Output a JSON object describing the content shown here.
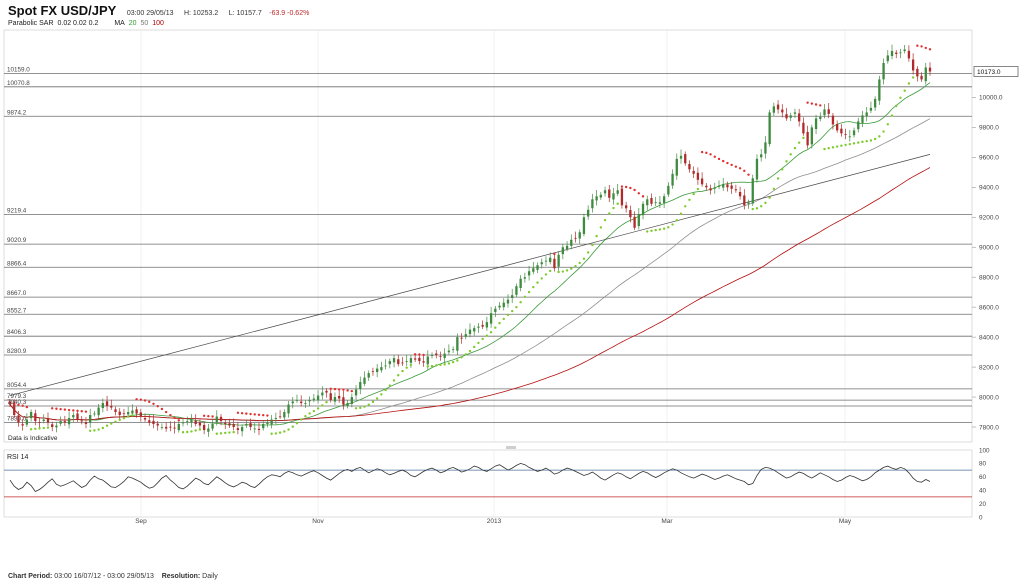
{
  "header": {
    "title": "Spot FX USD/JPY",
    "datetime": "03:00 29/05/13",
    "high": "H: 10253.2",
    "low": "L: 10157.7",
    "change": "-63.9 -0.62%"
  },
  "indicators": {
    "sar_label": "Parabolic SAR",
    "sar_params": "0.02 0.02 0.2",
    "ma_label": "MA",
    "ma20": "20",
    "ma50": "50",
    "ma100": "100"
  },
  "footer": {
    "period_label": "Chart Period:",
    "period_value": "03:00 16/07/12 - 03:00 29/05/13",
    "resolution_label": "Resolution:",
    "resolution_value": "Daily"
  },
  "chart_data": [
    {
      "type": "candlestick",
      "title": "Spot FX USD/JPY",
      "ylim": [
        7700,
        10450
      ],
      "y_ticks": [
        7800,
        8000,
        8200,
        8400,
        8600,
        8800,
        9000,
        9200,
        9400,
        9600,
        9800,
        10000
      ],
      "y_tick_labels": [
        "7800.0",
        "8000.0",
        "8200.0",
        "8400.0",
        "8600.0",
        "8800.0",
        "9000.0",
        "9200.0",
        "9400.0",
        "9600.0",
        "9800.0",
        "10000.0"
      ],
      "x_tick_labels": [
        "Sep",
        "Nov",
        "2013",
        "Mar",
        "May"
      ],
      "last_price": "10173.0",
      "horizontal_levels": [
        {
          "label": "10159.0",
          "value": 10159.0
        },
        {
          "label": "10070.8",
          "value": 10070.8
        },
        {
          "label": "9874.2",
          "value": 9874.2
        },
        {
          "label": "9219.4",
          "value": 9219.4
        },
        {
          "label": "9020.9",
          "value": 9020.9
        },
        {
          "label": "8866.4",
          "value": 8866.4
        },
        {
          "label": "8667.0",
          "value": 8667.0
        },
        {
          "label": "8552.7",
          "value": 8552.7
        },
        {
          "label": "8406.3",
          "value": 8406.3
        },
        {
          "label": "8280.9",
          "value": 8280.9
        },
        {
          "label": "8054.4",
          "value": 8054.4
        },
        {
          "label": "7979.3",
          "value": 7979.3
        },
        {
          "label": "7940.3",
          "value": 7940.3
        },
        {
          "label": "7830.0",
          "value": 7830.0
        }
      ],
      "indicative_note": "Data is Indicative",
      "series": [
        {
          "name": "Spot FX USD/JPY",
          "kind": "candles",
          "color_up": "#3e8a3e",
          "color_down": "#b02a2a",
          "close_path": [
            7950,
            7880,
            7830,
            7810,
            7850,
            7900,
            7840,
            7830,
            7850,
            7830,
            7800,
            7810,
            7840,
            7830,
            7860,
            7880,
            7850,
            7840,
            7820,
            7880,
            7890,
            7930,
            7960,
            7940,
            7930,
            7900,
            7880,
            7890,
            7900,
            7910,
            7890,
            7870,
            7850,
            7830,
            7820,
            7810,
            7800,
            7790,
            7800,
            7790,
            7820,
            7830,
            7840,
            7850,
            7820,
            7810,
            7780,
            7790,
            7820,
            7870,
            7840,
            7820,
            7810,
            7800,
            7780,
            7800,
            7820,
            7800,
            7790,
            7780,
            7820,
            7830,
            7850,
            7860,
            7870,
            7900,
            7950,
            7970,
            7980,
            7960,
            7960,
            7980,
            7990,
            8010,
            8030,
            8030,
            7980,
            8000,
            7990,
            7950,
            7960,
            8000,
            8050,
            8100,
            8130,
            8160,
            8170,
            8190,
            8200,
            8210,
            8240,
            8260,
            8220,
            8230,
            8240,
            8260,
            8250,
            8240,
            8230,
            8270,
            8280,
            8280,
            8270,
            8290,
            8310,
            8320,
            8400,
            8390,
            8420,
            8450,
            8460,
            8470,
            8470,
            8500,
            8560,
            8590,
            8610,
            8630,
            8650,
            8680,
            8740,
            8790,
            8800,
            8840,
            8860,
            8880,
            8900,
            8910,
            8930,
            8860,
            8950,
            9000,
            9010,
            9050,
            9060,
            9100,
            9200,
            9250,
            9320,
            9340,
            9350,
            9380,
            9330,
            9360,
            9380,
            9280,
            9260,
            9200,
            9130,
            9220,
            9290,
            9320,
            9290,
            9300,
            9300,
            9340,
            9410,
            9490,
            9590,
            9610,
            9560,
            9520,
            9490,
            9450,
            9420,
            9400,
            9380,
            9400,
            9410,
            9420,
            9400,
            9390,
            9380,
            9340,
            9280,
            9300,
            9460,
            9590,
            9620,
            9700,
            9900,
            9940,
            9920,
            9900,
            9860,
            9880,
            9900,
            9840,
            9760,
            9680,
            9800,
            9860,
            9870,
            9920,
            9890,
            9820,
            9780,
            9760,
            9750,
            9740,
            9780,
            9840,
            9880,
            9900,
            9930,
            9990,
            10120,
            10230,
            10280,
            10310,
            10290,
            10300,
            10320,
            10260,
            10180,
            10140,
            10120,
            10200,
            10173
          ]
        },
        {
          "name": "Parabolic SAR",
          "kind": "sar",
          "color_up": "#7ccb2a",
          "color_down": "#e03030"
        },
        {
          "name": "MA 20",
          "kind": "ma",
          "period": 20,
          "color": "#3a9a3a"
        },
        {
          "name": "MA 50",
          "kind": "ma",
          "period": 50,
          "color": "#8f8f8f"
        },
        {
          "name": "MA 100",
          "kind": "ma",
          "period": 100,
          "color": "#b50d0d"
        }
      ],
      "trendline": {
        "from": [
          0,
          8010
        ],
        "to": [
          218,
          9620
        ],
        "color": "#444444"
      }
    },
    {
      "type": "line",
      "title": "RSI 14",
      "ylim": [
        0,
        100
      ],
      "y_ticks": [
        0,
        20,
        40,
        60,
        80,
        100
      ],
      "y_tick_labels": [
        "0",
        "20",
        "40",
        "60",
        "80",
        "100"
      ],
      "reference_lines": [
        {
          "value": 70,
          "color": "#4a6f9b"
        },
        {
          "value": 30,
          "color": "#c0282a"
        }
      ],
      "series": [
        {
          "name": "RSI 14",
          "color": "#333333",
          "values": [
            55,
            46,
            41,
            44,
            52,
            47,
            38,
            41,
            46,
            52,
            57,
            49,
            46,
            48,
            51,
            54,
            49,
            44,
            47,
            55,
            61,
            57,
            55,
            50,
            45,
            44,
            48,
            53,
            60,
            58,
            55,
            52,
            47,
            43,
            45,
            51,
            58,
            62,
            55,
            50,
            44,
            42,
            46,
            52,
            58,
            55,
            50,
            48,
            54,
            60,
            56,
            51,
            47,
            45,
            48,
            52,
            50,
            46,
            44,
            49,
            55,
            60,
            63,
            62,
            60,
            65,
            68,
            66,
            63,
            61,
            64,
            67,
            69,
            66,
            62,
            58,
            55,
            60,
            65,
            69,
            71,
            68,
            72,
            74,
            70,
            66,
            69,
            72,
            70,
            66,
            63,
            65,
            68,
            70,
            67,
            62,
            60,
            64,
            68,
            71,
            73,
            70,
            66,
            68,
            72,
            74,
            71,
            67,
            69,
            72,
            76,
            74,
            70,
            68,
            72,
            76,
            78,
            74,
            70,
            73,
            77,
            80,
            78,
            74,
            71,
            68,
            70,
            73,
            69,
            64,
            66,
            70,
            73,
            71,
            68,
            65,
            62,
            64,
            67,
            63,
            58,
            55,
            59,
            63,
            66,
            64,
            60,
            57,
            61,
            65,
            68,
            66,
            62,
            59,
            62,
            66,
            69,
            72,
            70,
            66,
            63,
            60,
            58,
            61,
            64,
            62,
            59,
            56,
            58,
            61,
            63,
            60,
            57,
            55,
            53,
            48,
            50,
            62,
            71,
            74,
            73,
            70,
            66,
            62,
            58,
            60,
            64,
            67,
            65,
            61,
            58,
            62,
            66,
            63,
            60,
            56,
            53,
            55,
            59,
            62,
            60,
            57,
            54,
            56,
            60,
            66,
            70,
            74,
            76,
            73,
            71,
            74,
            72,
            66,
            58,
            53,
            52,
            56,
            53
          ]
        }
      ]
    }
  ]
}
